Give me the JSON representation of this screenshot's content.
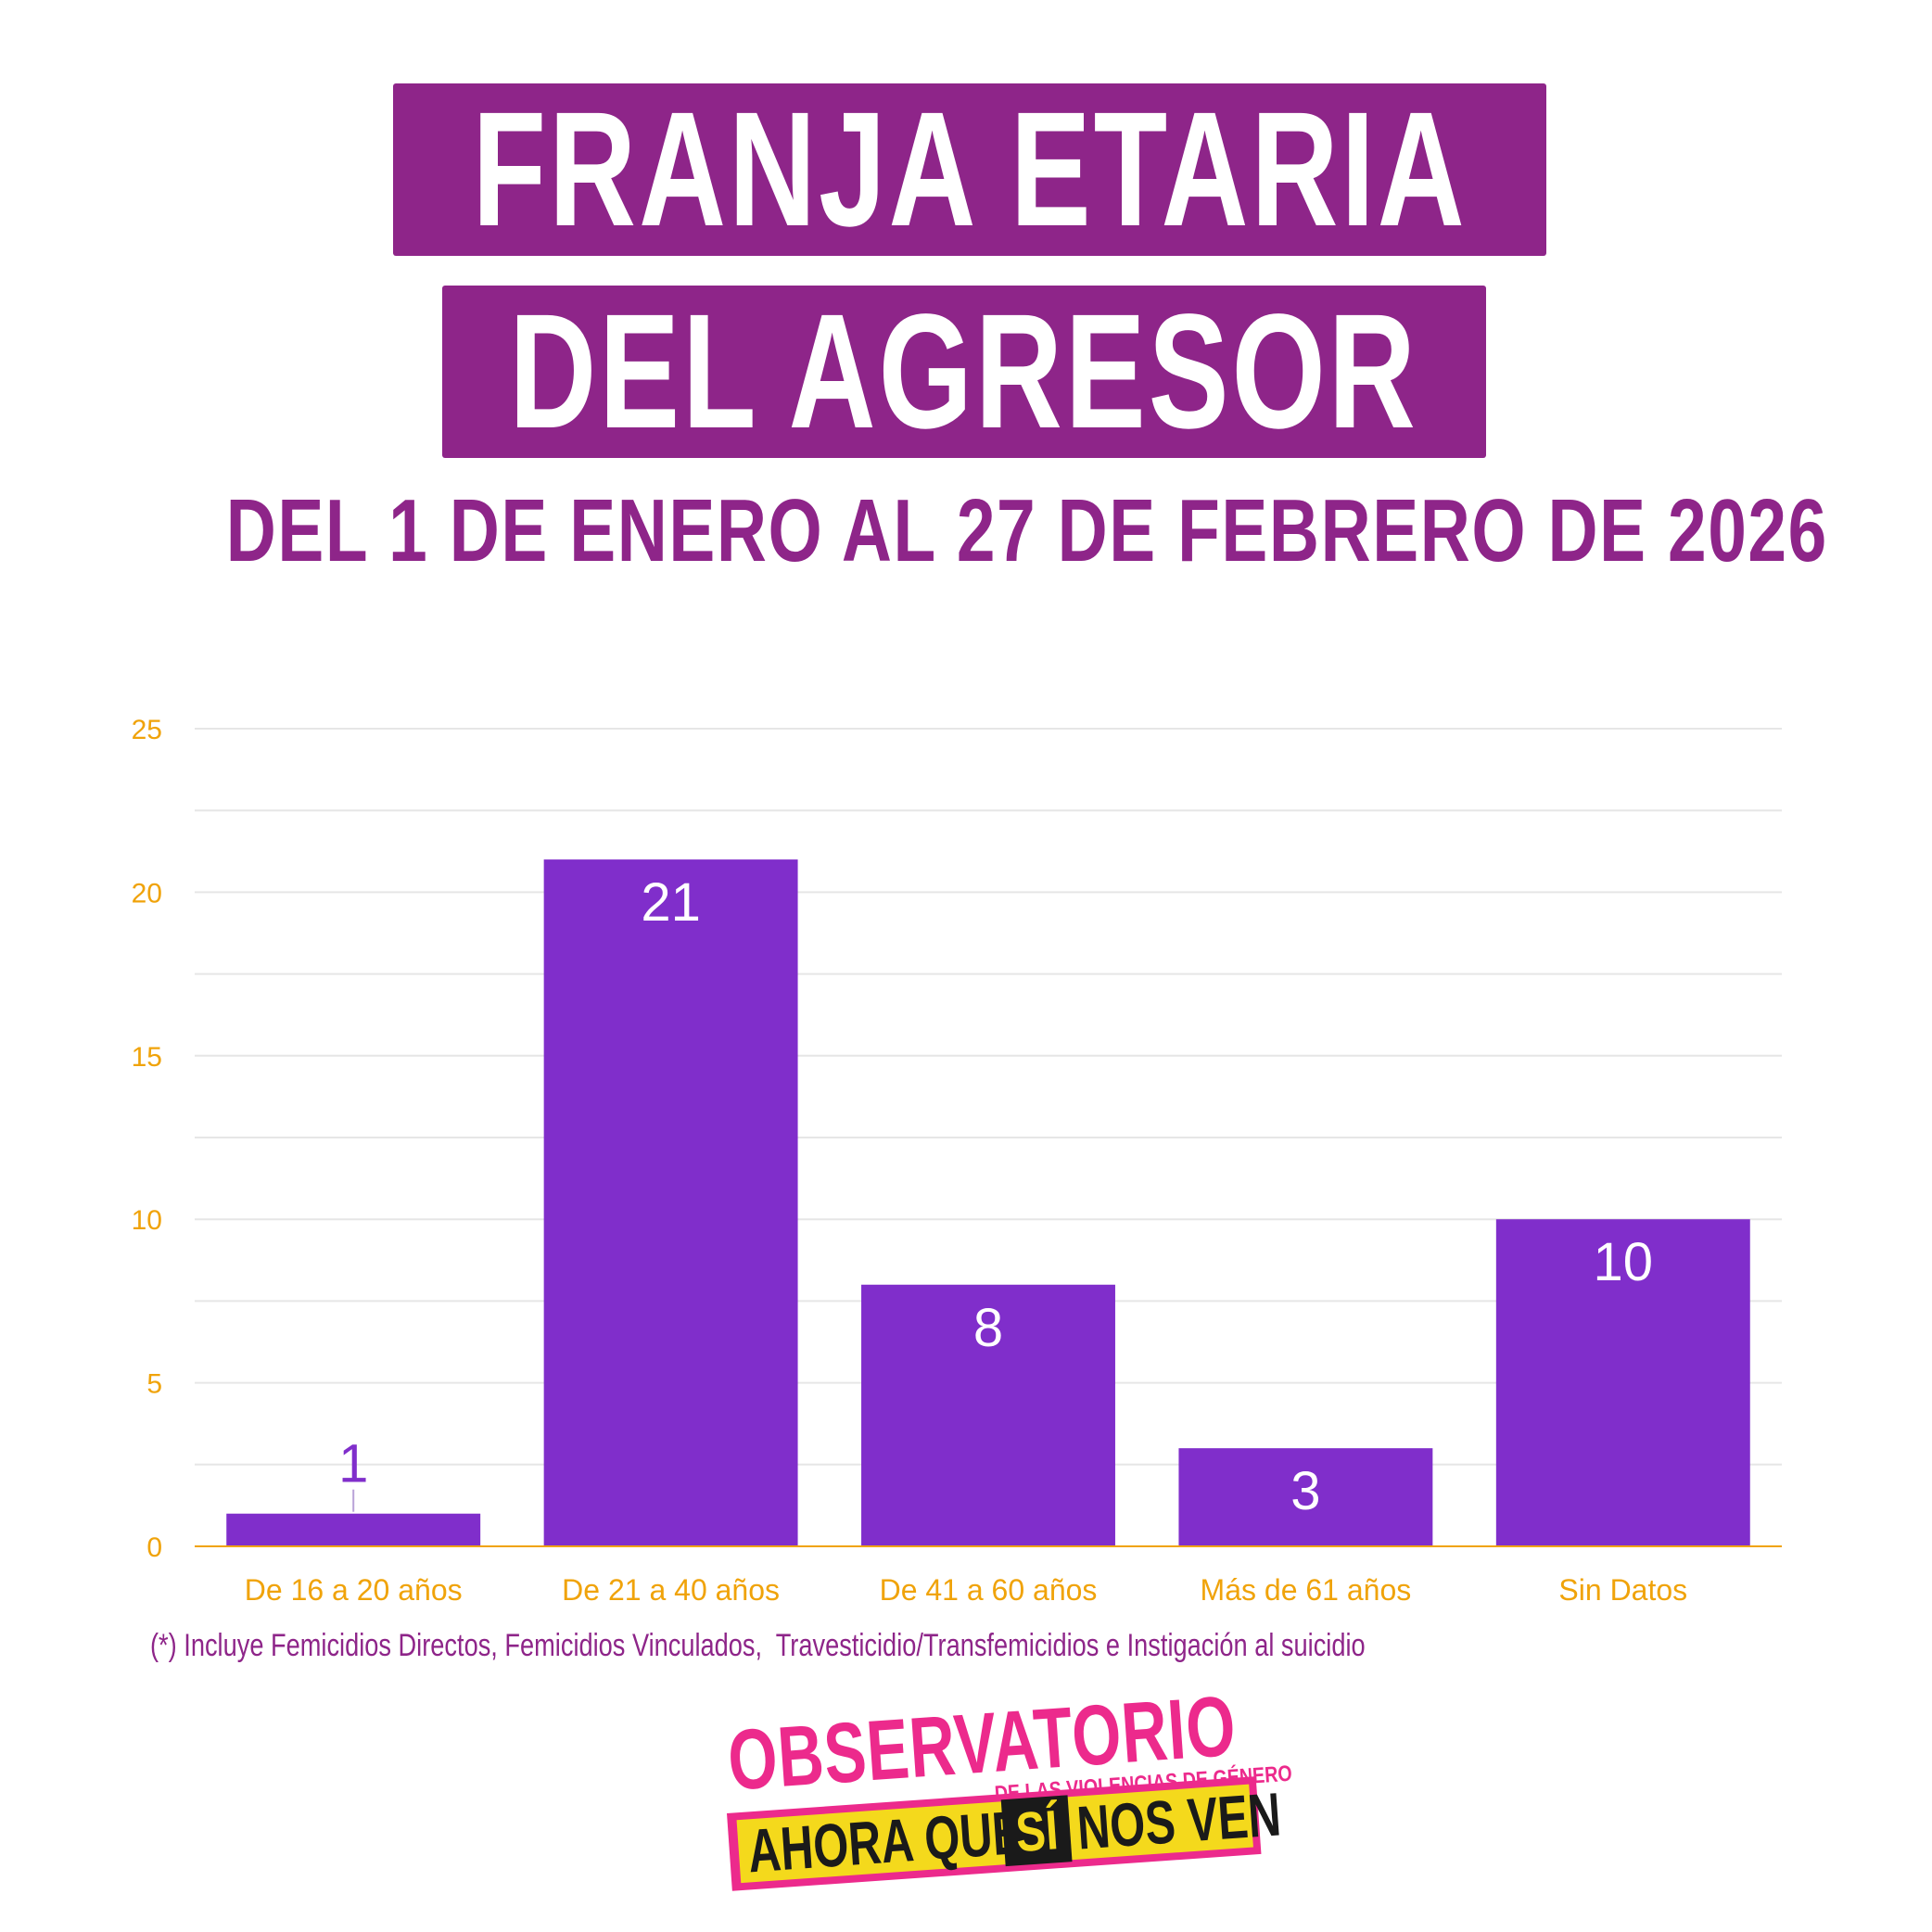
{
  "title": {
    "line1": "FRANJA ETARIA",
    "line2": "DEL AGRESOR"
  },
  "subtitle": "DEL 1 DE ENERO AL 27 DE FEBRERO DE 2026",
  "footnote": "(*) Incluye Femicidios Directos, Femicidios Vinculados,  Travesticidio/Transfemicidios e Instigación al suicidio",
  "logo": {
    "main": "OBSERVATORIO",
    "sub": "DE LAS VIOLENCIAS DE GÉNERO",
    "tagline_1": "AHORA QUE",
    "tagline_si": "SÍ",
    "tagline_2": "NOS VEN"
  },
  "colors": {
    "title_bg": "#8e2589",
    "bar": "#802ecb",
    "axis_text": "#f0a30a",
    "logo_pink": "#ec2a8c",
    "logo_yellow": "#f4d91c"
  },
  "chart_data": {
    "type": "bar",
    "categories": [
      "De 16 a 20 años",
      "De 21 a 40 años",
      "De 41 a 60 años",
      "Más de 61 años",
      "Sin Datos"
    ],
    "values": [
      1,
      21,
      8,
      3,
      10
    ],
    "data_labels": [
      "1",
      "21",
      "8",
      "3",
      "10"
    ],
    "ylim": [
      0,
      25
    ],
    "yticks": [
      0,
      5,
      10,
      15,
      20,
      25
    ],
    "grid": true,
    "title": "FRANJA ETARIA DEL AGRESOR",
    "subtitle": "DEL 1 DE ENERO AL 27 DE FEBRERO DE 2026",
    "xlabel": "",
    "ylabel": ""
  }
}
